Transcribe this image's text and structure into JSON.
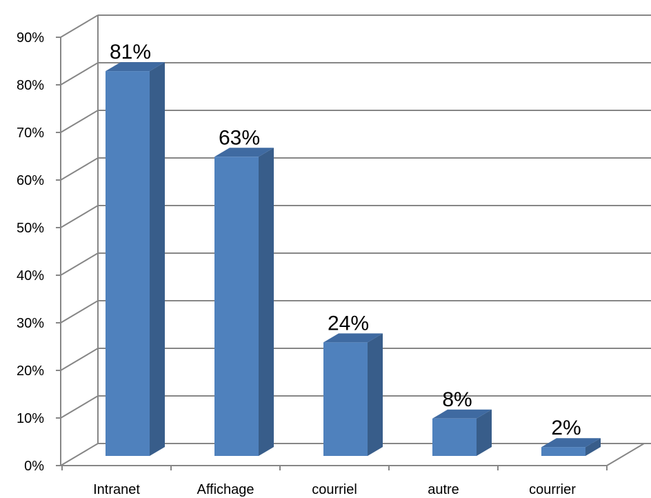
{
  "chart_data": {
    "type": "bar",
    "categories": [
      "Intranet",
      "Affichage",
      "courriel",
      "autre",
      "courrier"
    ],
    "values": [
      81,
      63,
      24,
      8,
      2
    ],
    "data_labels": [
      "81%",
      "63%",
      "24%",
      "8%",
      "2%"
    ],
    "title": "",
    "xlabel": "",
    "ylabel": "",
    "ylim": [
      0,
      90
    ],
    "y_ticks": [
      0,
      10,
      20,
      30,
      40,
      50,
      60,
      70,
      80,
      90
    ],
    "y_tick_labels": [
      "0%",
      "10%",
      "20%",
      "30%",
      "40%",
      "50%",
      "60%",
      "70%",
      "80%",
      "90%"
    ],
    "grid": true,
    "legend": "none",
    "style": "3d-column",
    "colors": {
      "bar_front": "#4F81BD",
      "bar_side": "#385D8A",
      "bar_top": "#3F6AA1",
      "grid": "#868686",
      "axis": "#868686",
      "text": "#000000"
    }
  }
}
